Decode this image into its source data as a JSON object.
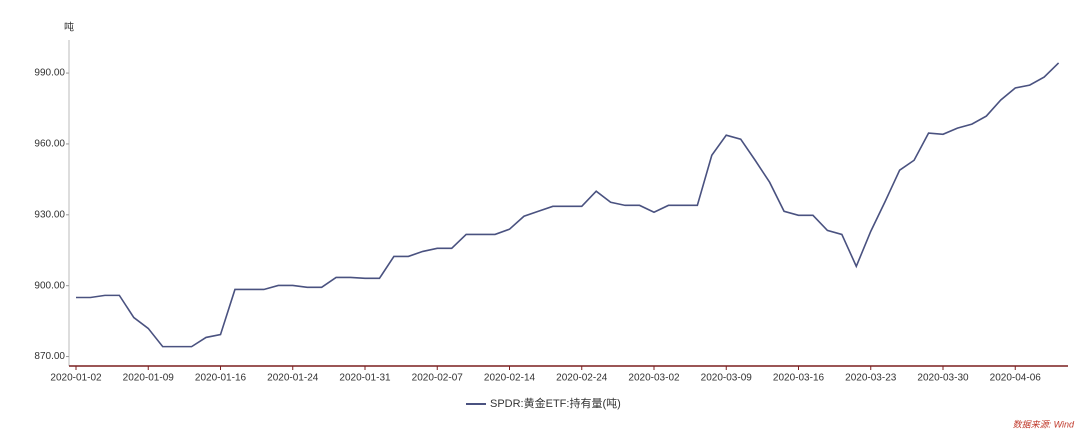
{
  "chart_data": {
    "type": "line",
    "y_axis_label": "吨",
    "categories": [
      "2020-01-02",
      null,
      null,
      null,
      null,
      "2020-01-09",
      null,
      null,
      null,
      null,
      "2020-01-16",
      null,
      null,
      null,
      null,
      "2020-01-24",
      null,
      null,
      null,
      null,
      "2020-01-31",
      null,
      null,
      null,
      null,
      "2020-02-07",
      null,
      null,
      null,
      null,
      "2020-02-14",
      null,
      null,
      null,
      null,
      "2020-02-24",
      null,
      null,
      null,
      null,
      "2020-03-02",
      null,
      null,
      null,
      null,
      "2020-03-09",
      null,
      null,
      null,
      null,
      "2020-03-16",
      null,
      null,
      null,
      null,
      "2020-03-23",
      null,
      null,
      null,
      null,
      "2020-03-30",
      null,
      null,
      null,
      null,
      "2020-04-06",
      null,
      null,
      null
    ],
    "series": [
      {
        "name": "SPDR:黄金ETF:持有量(吨)",
        "color": "#4a5280",
        "values": [
          895.0,
          895.0,
          895.9,
          895.9,
          886.5,
          881.9,
          874.2,
          874.2,
          874.2,
          878.1,
          879.3,
          898.4,
          898.4,
          898.4,
          900.1,
          900.1,
          899.3,
          899.3,
          903.5,
          903.5,
          903.1,
          903.1,
          912.4,
          912.4,
          914.5,
          915.8,
          915.8,
          921.7,
          921.7,
          921.7,
          923.9,
          929.4,
          931.5,
          933.6,
          933.6,
          933.6,
          940.0,
          935.3,
          934.0,
          934.0,
          931.1,
          934.0,
          934.0,
          934.0,
          955.2,
          963.7,
          962.0,
          953.1,
          943.8,
          931.5,
          929.8,
          929.8,
          923.4,
          921.7,
          908.2,
          923.0,
          935.7,
          948.9,
          953.1,
          964.6,
          964.1,
          966.7,
          968.4,
          971.8,
          978.6,
          983.7,
          984.9,
          988.3,
          994.3
        ]
      }
    ],
    "ylim": [
      866,
      1004
    ],
    "yticks": [
      {
        "value": 870,
        "label": "870.00"
      },
      {
        "value": 900,
        "label": "900.00"
      },
      {
        "value": 930,
        "label": "930.00"
      },
      {
        "value": 960,
        "label": "960.00"
      },
      {
        "value": 990,
        "label": "990.00"
      }
    ],
    "source": "数据来源: Wind"
  }
}
